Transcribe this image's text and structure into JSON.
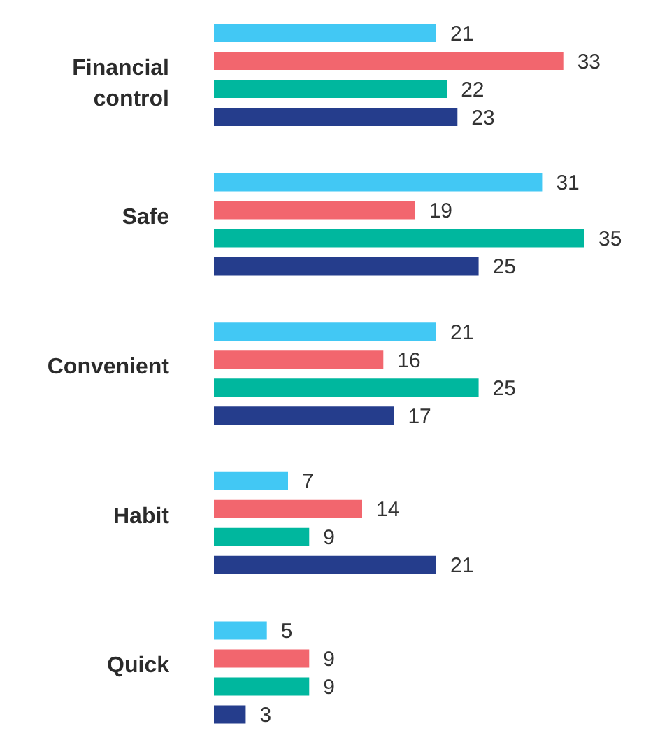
{
  "chart_data": {
    "type": "bar",
    "orientation": "horizontal",
    "categories": [
      "Financial control",
      "Safe",
      "Convenient",
      "Habit",
      "Quick"
    ],
    "series": [
      {
        "color": "#42c8f4",
        "values": [
          21,
          31,
          21,
          7,
          5
        ]
      },
      {
        "color": "#f2666e",
        "values": [
          33,
          19,
          16,
          14,
          9
        ]
      },
      {
        "color": "#00b79e",
        "values": [
          22,
          35,
          25,
          9,
          9
        ]
      },
      {
        "color": "#253d8c",
        "values": [
          23,
          25,
          17,
          21,
          3
        ]
      }
    ],
    "data_labels": true,
    "tick_labels": "y"
  }
}
